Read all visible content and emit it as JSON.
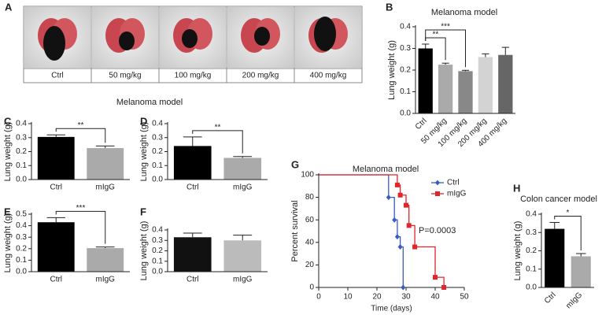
{
  "panel_a": {
    "label": "A",
    "images": [
      "Ctrl",
      "50 mg/kg",
      "100 mg/kg",
      "200 mg/kg",
      "400 mg/kg"
    ]
  },
  "group_title": "Melanoma model",
  "chart_data": [
    {
      "type": "bar",
      "label": "B",
      "title": "Melanoma model",
      "ylabel": "Lung weight (g)",
      "categories": [
        "Ctrl",
        "50 mg/kg",
        "100 mg/kg",
        "200 mg/kg",
        "400 mg/kg"
      ],
      "values": [
        0.3,
        0.225,
        0.195,
        0.26,
        0.27
      ],
      "errors": [
        0.02,
        0.007,
        0.004,
        0.015,
        0.035
      ],
      "colors": [
        "#000000",
        "#aaaaaa",
        "#888888",
        "#d3d3d3",
        "#666666"
      ],
      "ylim": [
        0,
        0.4
      ],
      "yticks": [
        {
          "value": 0,
          "label": "0.0"
        },
        0.1,
        0.2,
        0.3,
        0.4
      ],
      "annotations": [
        "**",
        "***"
      ]
    },
    {
      "type": "bar",
      "label": "C",
      "ylabel": "Lung weight (g)",
      "categories": [
        "Ctrl",
        "mIgG"
      ],
      "values": [
        0.305,
        0.225
      ],
      "errors": [
        0.015,
        0.015
      ],
      "colors": [
        "#000000",
        "#aaaaaa"
      ],
      "ylim": [
        0,
        0.4
      ],
      "yticks": [
        {
          "value": 0,
          "label": "0.0"
        },
        0.1,
        0.2,
        0.3,
        0.4
      ],
      "annotations": [
        "**"
      ]
    },
    {
      "type": "bar",
      "label": "D",
      "ylabel": "Lung weight (g)",
      "categories": [
        "Ctrl",
        "mIgG"
      ],
      "values": [
        0.24,
        0.155
      ],
      "errors": [
        0.065,
        0.01
      ],
      "colors": [
        "#000000",
        "#aaaaaa"
      ],
      "ylim": [
        0,
        0.4
      ],
      "yticks": [
        {
          "value": 0,
          "label": "0.0"
        },
        0.1,
        0.2,
        0.3,
        0.4
      ],
      "annotations": [
        "**"
      ]
    },
    {
      "type": "bar",
      "label": "E",
      "ylabel": "Lung weight (g)",
      "categories": [
        "Ctrl",
        "mIgG"
      ],
      "values": [
        0.43,
        0.205
      ],
      "errors": [
        0.04,
        0.01
      ],
      "colors": [
        "#000000",
        "#aaaaaa"
      ],
      "ylim": [
        0,
        0.5
      ],
      "yticks": [
        {
          "value": 0,
          "label": "0.0"
        },
        0.1,
        0.2,
        0.3,
        0.4,
        0.5
      ],
      "annotations": [
        "***"
      ]
    },
    {
      "type": "bar",
      "label": "F",
      "ylabel": "Lung weight (g)",
      "categories": [
        "Ctrl",
        "mIgG"
      ],
      "values": [
        0.33,
        0.3
      ],
      "errors": [
        0.04,
        0.05
      ],
      "colors": [
        "#111111",
        "#bbbbbb"
      ],
      "ylim": [
        0,
        0.4
      ],
      "yticks": [
        {
          "value": 0,
          "label": "0.0"
        },
        0.1,
        0.2,
        0.3,
        0.4
      ],
      "annotations": []
    },
    {
      "type": "line",
      "label": "G",
      "title": "Melanoma model",
      "xlabel": "Time (days)",
      "ylabel": "Percent survival",
      "series": [
        {
          "name": "Ctrl",
          "color": "#3a5bbf",
          "x": [
            0,
            24,
            26,
            27,
            28,
            29
          ],
          "values": [
            100,
            80,
            60,
            45,
            36,
            0
          ]
        },
        {
          "name": "mIgG",
          "color": "#e0262a",
          "x": [
            0,
            27,
            28,
            30,
            31,
            33,
            40,
            43
          ],
          "values": [
            100,
            91,
            82,
            73,
            55,
            36,
            9,
            0
          ]
        }
      ],
      "xlim": [
        0,
        50
      ],
      "xticks": [
        0,
        10,
        20,
        30,
        40,
        50
      ],
      "ylim": [
        0,
        100
      ],
      "yticks": [
        0,
        20,
        40,
        60,
        80,
        100
      ],
      "annotations": [
        "P=0.0003"
      ]
    },
    {
      "type": "bar",
      "label": "H",
      "title": "Colon cancer model",
      "ylabel": "Lung weight (g)",
      "categories": [
        "Ctrl",
        "mIgG"
      ],
      "values": [
        0.32,
        0.17
      ],
      "errors": [
        0.035,
        0.015
      ],
      "colors": [
        "#000000",
        "#aaaaaa"
      ],
      "ylim": [
        0,
        0.4
      ],
      "yticks": [
        {
          "value": 0,
          "label": "0.0"
        },
        0.1,
        0.2,
        0.3,
        0.4
      ],
      "annotations": [
        "*"
      ]
    }
  ]
}
